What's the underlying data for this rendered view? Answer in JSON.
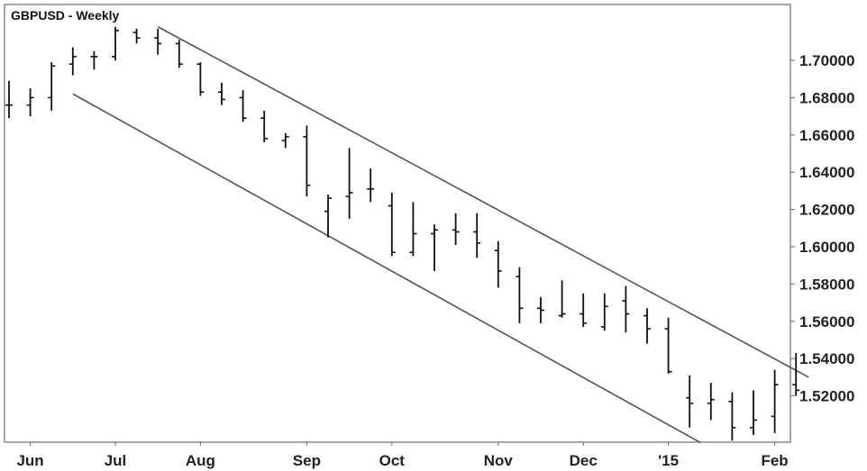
{
  "chart_data": {
    "type": "ohlc",
    "title": "GBPUSD - Weekly",
    "ylim": [
      1.495,
      1.718
    ],
    "y_ticks": [
      "1.70000",
      "1.68000",
      "1.66000",
      "1.64000",
      "1.62000",
      "1.60000",
      "1.58000",
      "1.56000",
      "1.54000",
      "1.52000"
    ],
    "y_tick_values": [
      1.7,
      1.68,
      1.66,
      1.64,
      1.62,
      1.6,
      1.58,
      1.56,
      1.54,
      1.52
    ],
    "x_ticks": [
      {
        "label": "Jun",
        "week": 1
      },
      {
        "label": "Jul",
        "week": 5
      },
      {
        "label": "Aug",
        "week": 9
      },
      {
        "label": "Sep",
        "week": 14
      },
      {
        "label": "Oct",
        "week": 18
      },
      {
        "label": "Nov",
        "week": 23
      },
      {
        "label": "Dec",
        "week": 27
      },
      {
        "label": "'15",
        "week": 31
      },
      {
        "label": "Feb",
        "week": 36
      }
    ],
    "bars": [
      {
        "week": 0,
        "open": 1.676,
        "high": 1.689,
        "low": 1.669,
        "close": 1.676
      },
      {
        "week": 1,
        "open": 1.676,
        "high": 1.685,
        "low": 1.67,
        "close": 1.68
      },
      {
        "week": 2,
        "open": 1.68,
        "high": 1.699,
        "low": 1.673,
        "close": 1.697
      },
      {
        "week": 3,
        "open": 1.698,
        "high": 1.707,
        "low": 1.692,
        "close": 1.702
      },
      {
        "week": 4,
        "open": 1.702,
        "high": 1.705,
        "low": 1.695,
        "close": 1.702
      },
      {
        "week": 5,
        "open": 1.702,
        "high": 1.718,
        "low": 1.7,
        "close": 1.716
      },
      {
        "week": 6,
        "open": 1.715,
        "high": 1.717,
        "low": 1.709,
        "close": 1.712
      },
      {
        "week": 7,
        "open": 1.712,
        "high": 1.717,
        "low": 1.703,
        "close": 1.709
      },
      {
        "week": 8,
        "open": 1.709,
        "high": 1.711,
        "low": 1.696,
        "close": 1.698
      },
      {
        "week": 9,
        "open": 1.698,
        "high": 1.699,
        "low": 1.681,
        "close": 1.683
      },
      {
        "week": 10,
        "open": 1.683,
        "high": 1.688,
        "low": 1.676,
        "close": 1.679
      },
      {
        "week": 11,
        "open": 1.68,
        "high": 1.684,
        "low": 1.667,
        "close": 1.669
      },
      {
        "week": 12,
        "open": 1.669,
        "high": 1.673,
        "low": 1.656,
        "close": 1.658
      },
      {
        "week": 13,
        "open": 1.657,
        "high": 1.661,
        "low": 1.653,
        "close": 1.659
      },
      {
        "week": 14,
        "open": 1.659,
        "high": 1.665,
        "low": 1.627,
        "close": 1.633
      },
      {
        "week": 15,
        "open": 1.619,
        "high": 1.628,
        "low": 1.605,
        "close": 1.626
      },
      {
        "week": 16,
        "open": 1.627,
        "high": 1.653,
        "low": 1.615,
        "close": 1.629
      },
      {
        "week": 17,
        "open": 1.631,
        "high": 1.642,
        "low": 1.624,
        "close": 1.631
      },
      {
        "week": 18,
        "open": 1.622,
        "high": 1.629,
        "low": 1.595,
        "close": 1.597
      },
      {
        "week": 19,
        "open": 1.597,
        "high": 1.624,
        "low": 1.595,
        "close": 1.607
      },
      {
        "week": 20,
        "open": 1.607,
        "high": 1.612,
        "low": 1.587,
        "close": 1.609
      },
      {
        "week": 21,
        "open": 1.609,
        "high": 1.618,
        "low": 1.601,
        "close": 1.608
      },
      {
        "week": 22,
        "open": 1.608,
        "high": 1.618,
        "low": 1.594,
        "close": 1.602
      },
      {
        "week": 23,
        "open": 1.598,
        "high": 1.603,
        "low": 1.578,
        "close": 1.587
      },
      {
        "week": 24,
        "open": 1.584,
        "high": 1.589,
        "low": 1.559,
        "close": 1.567
      },
      {
        "week": 25,
        "open": 1.567,
        "high": 1.573,
        "low": 1.559,
        "close": 1.566
      },
      {
        "week": 26,
        "open": 1.563,
        "high": 1.582,
        "low": 1.562,
        "close": 1.564
      },
      {
        "week": 27,
        "open": 1.564,
        "high": 1.575,
        "low": 1.557,
        "close": 1.559
      },
      {
        "week": 28,
        "open": 1.557,
        "high": 1.575,
        "low": 1.555,
        "close": 1.568
      },
      {
        "week": 29,
        "open": 1.571,
        "high": 1.579,
        "low": 1.554,
        "close": 1.564
      },
      {
        "week": 30,
        "open": 1.563,
        "high": 1.567,
        "low": 1.548,
        "close": 1.556
      },
      {
        "week": 31,
        "open": 1.556,
        "high": 1.562,
        "low": 1.532,
        "close": 1.533
      },
      {
        "week": 32,
        "open": 1.519,
        "high": 1.531,
        "low": 1.503,
        "close": 1.516
      },
      {
        "week": 33,
        "open": 1.516,
        "high": 1.527,
        "low": 1.507,
        "close": 1.518
      },
      {
        "week": 34,
        "open": 1.517,
        "high": 1.522,
        "low": 1.496,
        "close": 1.503
      },
      {
        "week": 35,
        "open": 1.503,
        "high": 1.523,
        "low": 1.499,
        "close": 1.507
      },
      {
        "week": 36,
        "open": 1.509,
        "high": 1.534,
        "low": 1.5,
        "close": 1.526
      },
      {
        "week": 37,
        "open": 1.526,
        "high": 1.543,
        "low": 1.52,
        "close": 1.523
      }
    ],
    "channel_lines": [
      {
        "name": "upper",
        "start": {
          "week": 7,
          "price": 1.718
        },
        "end": {
          "week": 37.6,
          "price": 1.53
        }
      },
      {
        "name": "lower",
        "start": {
          "week": 3,
          "price": 1.682
        },
        "end": {
          "week": 32.5,
          "price": 1.495
        }
      }
    ],
    "colors": {
      "bars": "#111111",
      "lines": "#555555",
      "border": "#888888",
      "text": "#222222"
    }
  }
}
